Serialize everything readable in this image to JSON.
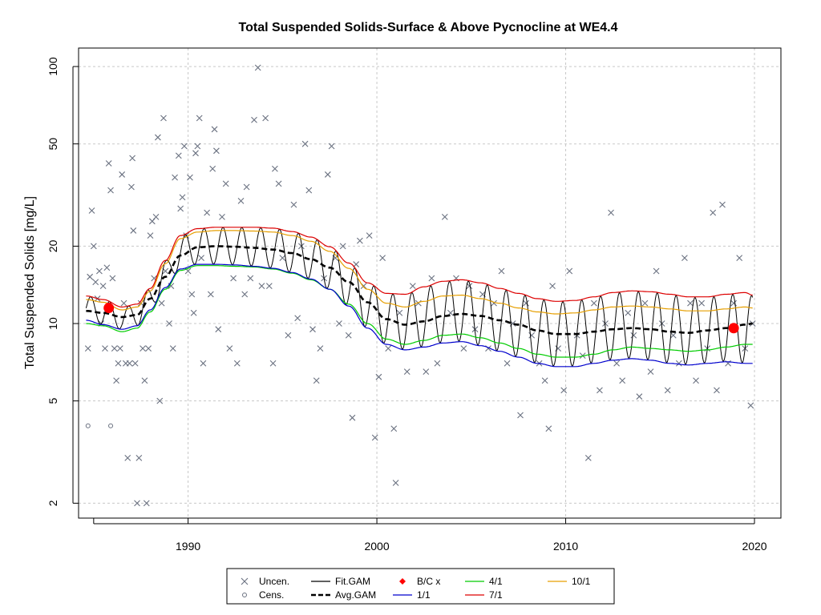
{
  "chart_data": {
    "type": "line",
    "title": "Total Suspended Solids-Surface & Above Pycnocline at WE4.4",
    "xlabel": "",
    "ylabel": "Total Suspended Solids [mg/L]",
    "x_ticks": [
      "1990",
      "2000",
      "2010",
      "2020"
    ],
    "y_ticks": [
      "2",
      "5",
      "10",
      "20",
      "50",
      "100"
    ],
    "y_scale": "log",
    "xlim": [
      1984.2,
      2021.4
    ],
    "ylim": [
      1.75,
      118
    ],
    "grid": true,
    "legend_position": "bottom-center",
    "legend": [
      {
        "label": "Uncen.",
        "symbol": "x",
        "color": "#6a7180"
      },
      {
        "label": "Cens.",
        "symbol": "circle",
        "color": "#6a7180"
      },
      {
        "label": "Fit.GAM",
        "symbol": "line",
        "color": "#000000"
      },
      {
        "label": "Avg.GAM",
        "symbol": "dashed",
        "color": "#000000"
      },
      {
        "label": "B/C x",
        "symbol": "diamond",
        "color": "#ff0000"
      },
      {
        "label": "1/1",
        "symbol": "line",
        "color": "#0000cd"
      },
      {
        "label": "4/1",
        "symbol": "line",
        "color": "#00cc00"
      },
      {
        "label": "7/1",
        "symbol": "line",
        "color": "#dd0000"
      },
      {
        "label": "10/1",
        "symbol": "line",
        "color": "#e69f00"
      }
    ],
    "series_knots": {
      "x": [
        1984.6,
        1985.5,
        1986.5,
        1987.3,
        1988.0,
        1988.8,
        1989.6,
        1990.5,
        1991.5,
        1992.5,
        1993.5,
        1994.5,
        1995.5,
        1996.5,
        1997.5,
        1998.5,
        1999.5,
        2000.5,
        2001.5,
        2002.5,
        2003.5,
        2004.5,
        2005.5,
        2006.5,
        2007.5,
        2008.5,
        2009.5,
        2010.5,
        2011.5,
        2012.5,
        2013.5,
        2014.5,
        2015.5,
        2016.5,
        2017.5,
        2018.5,
        2019.5,
        2019.9
      ],
      "avg": [
        11.2,
        11.0,
        10.6,
        10.8,
        12.5,
        15.2,
        18.4,
        19.8,
        20.0,
        19.9,
        19.7,
        19.4,
        18.8,
        17.8,
        16.5,
        14.5,
        12.1,
        10.4,
        9.9,
        10.2,
        10.7,
        10.9,
        10.7,
        10.3,
        9.9,
        9.4,
        9.1,
        9.1,
        9.3,
        9.5,
        9.6,
        9.5,
        9.3,
        9.2,
        9.4,
        9.6,
        9.9,
        10.0
      ],
      "line_1_1": [
        10.3,
        9.9,
        9.5,
        9.8,
        11.3,
        13.8,
        16.3,
        17.0,
        17.0,
        16.9,
        16.7,
        16.4,
        15.8,
        14.9,
        13.6,
        11.7,
        9.6,
        8.3,
        7.9,
        8.1,
        8.4,
        8.5,
        8.2,
        7.8,
        7.4,
        7.0,
        6.8,
        6.8,
        7.0,
        7.2,
        7.3,
        7.2,
        7.0,
        6.9,
        7.0,
        7.1,
        7.0,
        7.0
      ],
      "line_4_1": [
        10.0,
        9.8,
        9.3,
        9.6,
        11.1,
        13.6,
        16.1,
        16.8,
        16.8,
        16.7,
        16.6,
        16.3,
        15.7,
        14.8,
        13.6,
        11.9,
        10.0,
        8.7,
        8.3,
        8.6,
        9.0,
        9.1,
        8.8,
        8.4,
        8.0,
        7.6,
        7.4,
        7.4,
        7.6,
        7.9,
        8.1,
        8.0,
        7.9,
        7.8,
        7.9,
        8.1,
        8.3,
        8.3
      ],
      "line_7_1": [
        12.8,
        12.4,
        11.6,
        11.9,
        13.7,
        17.6,
        22.0,
        23.4,
        23.7,
        23.7,
        23.7,
        23.5,
        22.8,
        21.7,
        19.9,
        17.2,
        14.4,
        13.1,
        13.0,
        13.9,
        14.6,
        14.8,
        14.4,
        13.7,
        13.1,
        12.5,
        12.2,
        12.3,
        12.7,
        13.2,
        13.4,
        13.3,
        13.0,
        12.7,
        12.7,
        13.0,
        13.2,
        12.9
      ],
      "line_10_1": [
        12.4,
        12.1,
        11.3,
        11.6,
        13.4,
        17.1,
        21.4,
        22.7,
        23.0,
        23.0,
        22.9,
        22.7,
        22.0,
        20.9,
        19.1,
        16.4,
        13.6,
        12.0,
        11.6,
        12.2,
        12.8,
        12.9,
        12.5,
        12.0,
        11.5,
        11.1,
        10.9,
        11.0,
        11.3,
        11.6,
        11.7,
        11.6,
        11.4,
        11.2,
        11.2,
        11.4,
        11.6,
        11.5
      ]
    },
    "fit_gam": {
      "mean_key": "avg",
      "low_key": "line_1_1",
      "high_key": "line_7_1",
      "cycles_per_year": 1
    },
    "bc_points": [
      {
        "x": 1985.8,
        "y": 11.5
      },
      {
        "x": 2018.9,
        "y": 9.6
      }
    ],
    "censored_points": [
      {
        "x": 1984.7,
        "y": 4.0
      },
      {
        "x": 1985.9,
        "y": 4.0
      }
    ],
    "uncensored_points": [
      [
        1984.7,
        8.0
      ],
      [
        1984.8,
        15.2
      ],
      [
        1984.9,
        27.5
      ],
      [
        1985.0,
        20.0
      ],
      [
        1985.1,
        14.5
      ],
      [
        1985.2,
        12.5
      ],
      [
        1985.3,
        16.0
      ],
      [
        1985.4,
        10.0
      ],
      [
        1985.5,
        14.0
      ],
      [
        1985.6,
        8.0
      ],
      [
        1985.7,
        16.5
      ],
      [
        1985.8,
        42.0
      ],
      [
        1985.9,
        33.0
      ],
      [
        1986.0,
        15.0
      ],
      [
        1986.1,
        8.0
      ],
      [
        1986.2,
        6.0
      ],
      [
        1986.3,
        7.0
      ],
      [
        1986.4,
        8.0
      ],
      [
        1986.5,
        38.0
      ],
      [
        1986.6,
        12.0
      ],
      [
        1986.7,
        7.0
      ],
      [
        1986.8,
        3.0
      ],
      [
        1986.9,
        7.0
      ],
      [
        1987.0,
        34.0
      ],
      [
        1987.05,
        44.0
      ],
      [
        1987.1,
        23.0
      ],
      [
        1987.2,
        7.0
      ],
      [
        1987.3,
        2.0
      ],
      [
        1987.4,
        3.0
      ],
      [
        1987.5,
        12.0
      ],
      [
        1987.6,
        8.0
      ],
      [
        1987.7,
        6.0
      ],
      [
        1987.8,
        2.0
      ],
      [
        1987.9,
        8.0
      ],
      [
        1988.0,
        22.0
      ],
      [
        1988.1,
        25.0
      ],
      [
        1988.2,
        15.0
      ],
      [
        1988.3,
        26.0
      ],
      [
        1988.4,
        53.0
      ],
      [
        1988.5,
        5.0
      ],
      [
        1988.6,
        12.0
      ],
      [
        1988.7,
        63.0
      ],
      [
        1988.8,
        16.0
      ],
      [
        1989.0,
        10.0
      ],
      [
        1989.1,
        14.0
      ],
      [
        1989.2,
        8.0
      ],
      [
        1989.3,
        37.0
      ],
      [
        1989.5,
        45.0
      ],
      [
        1989.6,
        28.0
      ],
      [
        1989.7,
        31.0
      ],
      [
        1989.8,
        49.0
      ],
      [
        1989.9,
        22.0
      ],
      [
        1990.0,
        16.0
      ],
      [
        1990.1,
        37.0
      ],
      [
        1990.2,
        13.0
      ],
      [
        1990.3,
        11.0
      ],
      [
        1990.4,
        46.0
      ],
      [
        1990.5,
        49.0
      ],
      [
        1990.6,
        63.0
      ],
      [
        1990.7,
        18.0
      ],
      [
        1990.8,
        7.0
      ],
      [
        1991.0,
        27.0
      ],
      [
        1991.2,
        13.0
      ],
      [
        1991.3,
        40.0
      ],
      [
        1991.4,
        57.0
      ],
      [
        1991.5,
        47.0
      ],
      [
        1991.6,
        9.5
      ],
      [
        1991.8,
        26.0
      ],
      [
        1992.0,
        35.0
      ],
      [
        1992.2,
        8.0
      ],
      [
        1992.4,
        15.0
      ],
      [
        1992.6,
        7.0
      ],
      [
        1992.8,
        30.0
      ],
      [
        1993.0,
        13.0
      ],
      [
        1993.1,
        34.0
      ],
      [
        1993.3,
        15.0
      ],
      [
        1993.5,
        62.0
      ],
      [
        1993.7,
        99.0
      ],
      [
        1993.9,
        14.0
      ],
      [
        1994.1,
        63.0
      ],
      [
        1994.3,
        14.0
      ],
      [
        1994.5,
        7.0
      ],
      [
        1994.6,
        40.0
      ],
      [
        1994.8,
        35.0
      ],
      [
        1995.0,
        18.0
      ],
      [
        1995.3,
        9.0
      ],
      [
        1995.6,
        29.0
      ],
      [
        1995.8,
        10.5
      ],
      [
        1996.0,
        20.0
      ],
      [
        1996.2,
        50.0
      ],
      [
        1996.4,
        33.0
      ],
      [
        1996.6,
        9.5
      ],
      [
        1996.8,
        6.0
      ],
      [
        1997.0,
        8.0
      ],
      [
        1997.2,
        15.0
      ],
      [
        1997.4,
        38.0
      ],
      [
        1997.6,
        49.0
      ],
      [
        1997.8,
        18.0
      ],
      [
        1998.0,
        10.0
      ],
      [
        1998.2,
        20.0
      ],
      [
        1998.5,
        9.0
      ],
      [
        1998.7,
        4.3
      ],
      [
        1998.9,
        17.0
      ],
      [
        1999.1,
        21.0
      ],
      [
        1999.3,
        14.0
      ],
      [
        1999.6,
        22.0
      ],
      [
        1999.9,
        3.6
      ],
      [
        2000.1,
        6.2
      ],
      [
        2000.3,
        18.0
      ],
      [
        2000.6,
        8.0
      ],
      [
        2000.9,
        3.9
      ],
      [
        2001.0,
        2.4
      ],
      [
        2001.2,
        11.0
      ],
      [
        2001.6,
        6.5
      ],
      [
        2001.9,
        14.0
      ],
      [
        2002.2,
        12.0
      ],
      [
        2002.6,
        6.5
      ],
      [
        2002.9,
        15.0
      ],
      [
        2003.2,
        7.0
      ],
      [
        2003.6,
        26.0
      ],
      [
        2003.9,
        11.0
      ],
      [
        2004.2,
        15.0
      ],
      [
        2004.6,
        8.0
      ],
      [
        2004.9,
        14.0
      ],
      [
        2005.2,
        9.5
      ],
      [
        2005.6,
        13.0
      ],
      [
        2005.9,
        8.0
      ],
      [
        2006.2,
        12.0
      ],
      [
        2006.6,
        16.0
      ],
      [
        2006.9,
        7.0
      ],
      [
        2007.2,
        10.0
      ],
      [
        2007.6,
        4.4
      ],
      [
        2007.9,
        12.0
      ],
      [
        2008.2,
        9.0
      ],
      [
        2008.6,
        7.0
      ],
      [
        2008.9,
        6.0
      ],
      [
        2009.1,
        3.9
      ],
      [
        2009.3,
        14.0
      ],
      [
        2009.6,
        8.0
      ],
      [
        2009.9,
        5.5
      ],
      [
        2010.2,
        16.0
      ],
      [
        2010.6,
        9.0
      ],
      [
        2010.9,
        7.5
      ],
      [
        2011.2,
        3.0
      ],
      [
        2011.5,
        12.0
      ],
      [
        2011.8,
        5.5
      ],
      [
        2012.1,
        10.0
      ],
      [
        2012.4,
        27.0
      ],
      [
        2012.7,
        7.0
      ],
      [
        2013.0,
        6.0
      ],
      [
        2013.3,
        11.0
      ],
      [
        2013.6,
        9.0
      ],
      [
        2013.9,
        5.2
      ],
      [
        2014.2,
        12.0
      ],
      [
        2014.5,
        6.5
      ],
      [
        2014.8,
        16.0
      ],
      [
        2015.1,
        10.0
      ],
      [
        2015.4,
        5.5
      ],
      [
        2015.7,
        9.0
      ],
      [
        2016.0,
        7.0
      ],
      [
        2016.3,
        18.0
      ],
      [
        2016.6,
        12.0
      ],
      [
        2016.9,
        6.0
      ],
      [
        2017.2,
        12.0
      ],
      [
        2017.5,
        8.0
      ],
      [
        2017.8,
        27.0
      ],
      [
        2018.0,
        5.5
      ],
      [
        2018.3,
        29.0
      ],
      [
        2018.6,
        7.0
      ],
      [
        2018.9,
        12.0
      ],
      [
        2019.2,
        18.0
      ],
      [
        2019.5,
        8.0
      ],
      [
        2019.8,
        4.8
      ],
      [
        2019.9,
        10.0
      ]
    ]
  }
}
